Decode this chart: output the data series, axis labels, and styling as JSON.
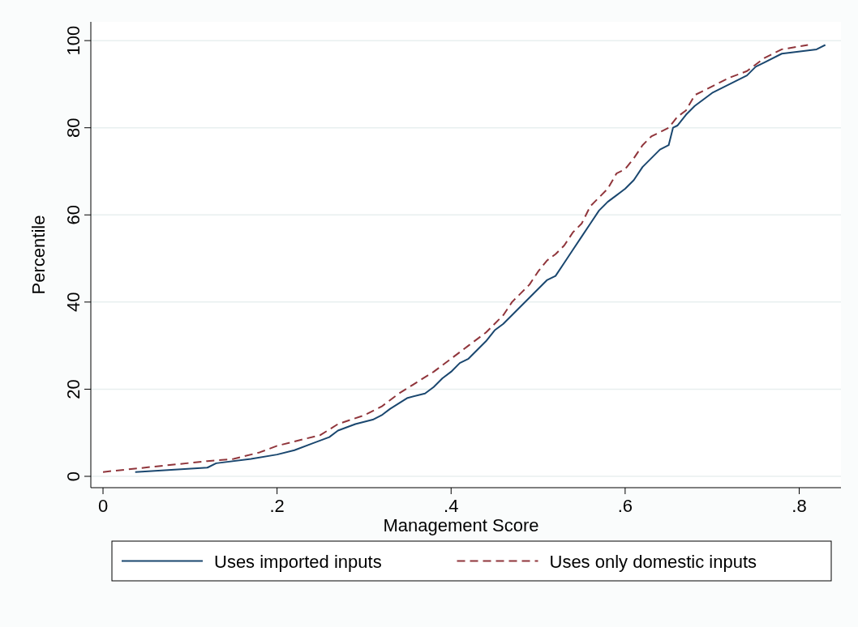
{
  "chart_data": {
    "type": "line",
    "xlabel": "Management Score",
    "ylabel": "Percentile",
    "xlim": [
      -0.014,
      0.848
    ],
    "ylim": [
      -2.6,
      104.3
    ],
    "xticks": [
      0,
      {
        "value": 0.2,
        "label": ".2"
      },
      {
        "value": 0.4,
        "label": ".4"
      },
      {
        "value": 0.6,
        "label": ".6"
      },
      {
        "value": 0.8,
        "label": ".8"
      }
    ],
    "yticks": [
      0,
      20,
      40,
      60,
      80,
      100
    ],
    "grid": "y",
    "legend": "bottom",
    "series": [
      {
        "name": "Uses imported inputs",
        "color": "#1a476f",
        "line_style": "solid",
        "x": [
          0.037,
          0.12,
          0.13,
          0.17,
          0.2,
          0.22,
          0.24,
          0.26,
          0.27,
          0.29,
          0.31,
          0.32,
          0.33,
          0.35,
          0.37,
          0.38,
          0.39,
          0.4,
          0.41,
          0.42,
          0.43,
          0.44,
          0.45,
          0.46,
          0.47,
          0.48,
          0.49,
          0.5,
          0.51,
          0.52,
          0.53,
          0.54,
          0.55,
          0.56,
          0.57,
          0.58,
          0.59,
          0.6,
          0.61,
          0.62,
          0.63,
          0.64,
          0.65,
          0.655,
          0.66,
          0.67,
          0.68,
          0.69,
          0.7,
          0.72,
          0.74,
          0.75,
          0.76,
          0.78,
          0.82,
          0.83
        ],
        "values": [
          1,
          2,
          3,
          4,
          5,
          6,
          7.5,
          9,
          10.5,
          12,
          13,
          14,
          15.5,
          18,
          19,
          20.5,
          22.5,
          24,
          26,
          27,
          29,
          31,
          33.5,
          35,
          37,
          39,
          41,
          43,
          45,
          46,
          49,
          52,
          55,
          58,
          61,
          63,
          64.5,
          66,
          68,
          71,
          73,
          75,
          76,
          80,
          80.5,
          83,
          85,
          86.5,
          88,
          90,
          92,
          94,
          95,
          97,
          98,
          99
        ]
      },
      {
        "name": "Uses only domestic inputs",
        "color": "#90353b",
        "line_style": "dashed",
        "x": [
          0,
          0.12,
          0.15,
          0.18,
          0.2,
          0.22,
          0.25,
          0.27,
          0.3,
          0.32,
          0.34,
          0.36,
          0.38,
          0.4,
          0.42,
          0.44,
          0.46,
          0.47,
          0.48,
          0.49,
          0.5,
          0.51,
          0.52,
          0.53,
          0.54,
          0.55,
          0.56,
          0.57,
          0.58,
          0.59,
          0.6,
          0.61,
          0.62,
          0.63,
          0.64,
          0.65,
          0.66,
          0.67,
          0.68,
          0.7,
          0.72,
          0.74,
          0.76,
          0.78,
          0.81
        ],
        "values": [
          1,
          3.5,
          4,
          5.5,
          7,
          8,
          9.5,
          12,
          14,
          16,
          19,
          21.5,
          24,
          27,
          30,
          33,
          37,
          40,
          42,
          44,
          47,
          49.5,
          51,
          53,
          56,
          58,
          62,
          64,
          66,
          69.5,
          70.5,
          73,
          76,
          78,
          79,
          80,
          82.5,
          84,
          87.5,
          89.5,
          91.5,
          93,
          96,
          98,
          99
        ]
      }
    ]
  }
}
